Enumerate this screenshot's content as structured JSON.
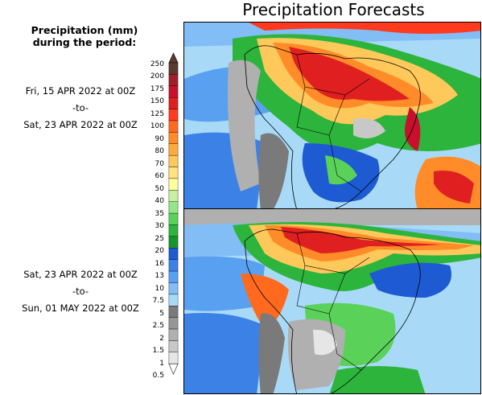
{
  "title": "Precipitation Forecasts",
  "legend_title": [
    "Precipitation (mm)",
    "during the period:"
  ],
  "periods": [
    {
      "from": "Fri, 15 APR 2022 at 00Z",
      "sep": "-to-",
      "to": "Sat, 23 APR 2022 at 00Z"
    },
    {
      "from": "Sat, 23 APR 2022 at 00Z",
      "sep": "-to-",
      "to": "Sun, 01 MAY 2022 at 00Z"
    }
  ],
  "colorbar": {
    "levels": [
      "250",
      "200",
      "175",
      "150",
      "125",
      "100",
      "90",
      "80",
      "70",
      "60",
      "50",
      "40",
      "35",
      "30",
      "25",
      "20",
      "16",
      "13",
      "10",
      "7.5",
      "5",
      "2.5",
      "2",
      "1.5",
      "1",
      "0.5"
    ],
    "colors": [
      "#5a3a2e",
      "#a0202a",
      "#c8102e",
      "#e02020",
      "#ff3a1e",
      "#ff6a1e",
      "#ff8c28",
      "#ffaa3c",
      "#ffc85a",
      "#ffe17d",
      "#ffff9e",
      "#c8f0a0",
      "#96e687",
      "#5ad25a",
      "#2db43c",
      "#149628",
      "#1e5ad2",
      "#3c82e6",
      "#5aa0f0",
      "#82bef5",
      "#a8daf8",
      "#7a7a7a",
      "#969696",
      "#b0b0b0",
      "#c8c8c8",
      "#e6e6e6"
    ]
  }
}
